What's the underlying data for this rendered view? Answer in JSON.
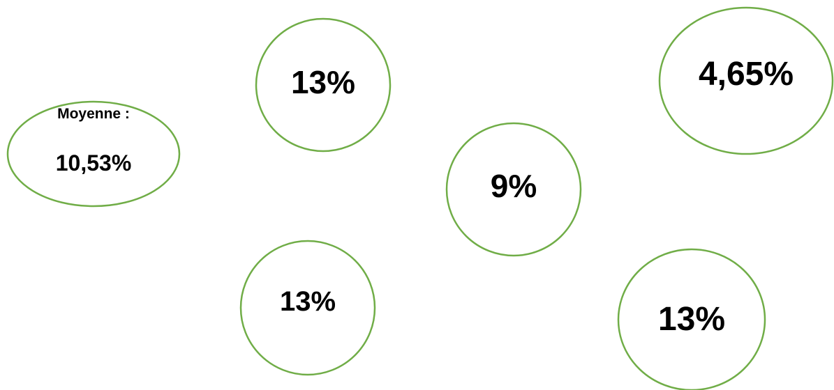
{
  "colors": {
    "outline": "#70ad47",
    "text": "#000000",
    "background": "#ffffff"
  },
  "average": {
    "label": "Moyenne :",
    "value": "10,53%"
  },
  "bubbles": [
    {
      "value": "13%"
    },
    {
      "value": "4,65%"
    },
    {
      "value": "9%"
    },
    {
      "value": "13%"
    },
    {
      "value": "13%"
    }
  ]
}
